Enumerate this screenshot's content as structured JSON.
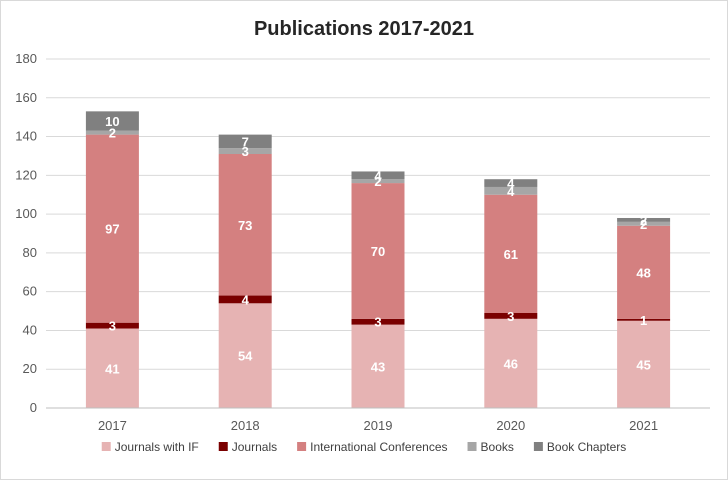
{
  "chart_data": {
    "type": "bar",
    "stacked": true,
    "title": "Publications 2017-2021",
    "xlabel": "",
    "ylabel": "",
    "ylim": [
      0,
      180
    ],
    "yticks": [
      0,
      20,
      40,
      60,
      80,
      100,
      120,
      140,
      160,
      180
    ],
    "grid": true,
    "legend_position": "bottom",
    "categories": [
      "2017",
      "2018",
      "2019",
      "2020",
      "2021"
    ],
    "series": [
      {
        "name": "Journals with IF",
        "color": "#e6b3b3",
        "values": [
          41,
          54,
          43,
          46,
          45
        ]
      },
      {
        "name": "Journals",
        "color": "#7a0000",
        "values": [
          3,
          4,
          3,
          3,
          1
        ]
      },
      {
        "name": "International Conferences",
        "color": "#d48080",
        "values": [
          97,
          73,
          70,
          61,
          48
        ]
      },
      {
        "name": "Books",
        "color": "#a6a6a6",
        "values": [
          2,
          3,
          2,
          4,
          2
        ]
      },
      {
        "name": "Book Chapters",
        "color": "#808080",
        "values": [
          10,
          7,
          4,
          4,
          2
        ]
      }
    ]
  }
}
